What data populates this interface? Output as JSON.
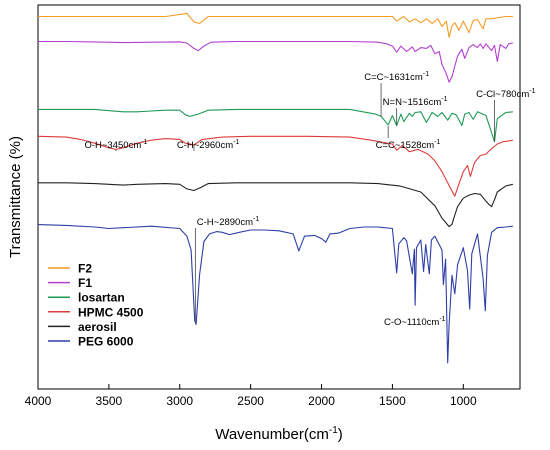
{
  "chart_data": {
    "type": "line",
    "title": "",
    "xlabel": "Wavenumber(cm",
    "xlabel_sup": "-1",
    "xlabel_close": ")",
    "ylabel": "Transmittance (%)",
    "xlim": [
      4000,
      600
    ],
    "x_reversed": true,
    "xticks": [
      4000,
      3500,
      3000,
      2500,
      2000,
      1500,
      1000
    ],
    "grid": false,
    "legend_position": "bottom-left",
    "series": [
      {
        "name": "F2",
        "color": "#F39C26",
        "baseline": 0.03,
        "points": [
          [
            4000,
            0
          ],
          [
            3500,
            0
          ],
          [
            3100,
            0
          ],
          [
            2950,
            -0.4
          ],
          [
            2900,
            0.7
          ],
          [
            2860,
            0.9
          ],
          [
            2800,
            0
          ],
          [
            2400,
            0
          ],
          [
            2000,
            0
          ],
          [
            1700,
            0
          ],
          [
            1500,
            0
          ],
          [
            1470,
            0.6
          ],
          [
            1420,
            0
          ],
          [
            1380,
            0.7
          ],
          [
            1340,
            0.3
          ],
          [
            1300,
            0.8
          ],
          [
            1260,
            0.3
          ],
          [
            1220,
            0.9
          ],
          [
            1180,
            0.3
          ],
          [
            1150,
            1.3
          ],
          [
            1120,
            0.6
          ],
          [
            1100,
            2.7
          ],
          [
            1080,
            1.2
          ],
          [
            1060,
            0.8
          ],
          [
            1030,
            1.8
          ],
          [
            1000,
            0.6
          ],
          [
            960,
            2.1
          ],
          [
            930,
            0.5
          ],
          [
            900,
            0.4
          ],
          [
            860,
            1.6
          ],
          [
            840,
            0.3
          ],
          [
            800,
            0.3
          ],
          [
            700,
            0
          ],
          [
            650,
            0
          ]
        ]
      },
      {
        "name": "F1",
        "color": "#B43FCF",
        "baseline": 0.095,
        "points": [
          [
            4000,
            0
          ],
          [
            3800,
            0
          ],
          [
            3600,
            0.05
          ],
          [
            3400,
            0.15
          ],
          [
            3200,
            0.1
          ],
          [
            3000,
            0.05
          ],
          [
            2950,
            0.2
          ],
          [
            2900,
            0.9
          ],
          [
            2870,
            1.2
          ],
          [
            2830,
            0.6
          ],
          [
            2780,
            0.1
          ],
          [
            2600,
            0
          ],
          [
            2200,
            0
          ],
          [
            1800,
            0
          ],
          [
            1600,
            0.1
          ],
          [
            1540,
            0.3
          ],
          [
            1500,
            0.6
          ],
          [
            1470,
            1.4
          ],
          [
            1440,
            0.6
          ],
          [
            1400,
            1.3
          ],
          [
            1360,
            0.7
          ],
          [
            1340,
            1.3
          ],
          [
            1300,
            0.8
          ],
          [
            1260,
            0.9
          ],
          [
            1230,
            0.5
          ],
          [
            1200,
            1.6
          ],
          [
            1170,
            1.3
          ],
          [
            1150,
            3.0
          ],
          [
            1120,
            4.2
          ],
          [
            1100,
            5.3
          ],
          [
            1080,
            4.6
          ],
          [
            1060,
            3.2
          ],
          [
            1040,
            1.9
          ],
          [
            1010,
            1.0
          ],
          [
            990,
            2.2
          ],
          [
            960,
            0.8
          ],
          [
            930,
            0.4
          ],
          [
            900,
            0.8
          ],
          [
            880,
            0.3
          ],
          [
            860,
            0.9
          ],
          [
            840,
            0.3
          ],
          [
            800,
            1.2
          ],
          [
            780,
            0.5
          ],
          [
            760,
            2.6
          ],
          [
            740,
            0.4
          ],
          [
            700,
            0.9
          ],
          [
            680,
            0.3
          ],
          [
            650,
            0.2
          ]
        ]
      },
      {
        "name": "losartan",
        "color": "#1E9A55",
        "baseline": 0.272,
        "points": [
          [
            4000,
            0
          ],
          [
            3600,
            0
          ],
          [
            3400,
            0.3
          ],
          [
            3300,
            0.3
          ],
          [
            3200,
            0.2
          ],
          [
            3100,
            0.1
          ],
          [
            3000,
            0.1
          ],
          [
            2960,
            0.7
          ],
          [
            2930,
            0.9
          ],
          [
            2870,
            0.6
          ],
          [
            2800,
            0.1
          ],
          [
            2600,
            0
          ],
          [
            2000,
            0
          ],
          [
            1800,
            0
          ],
          [
            1620,
            0.6
          ],
          [
            1580,
            0.9
          ],
          [
            1530,
            2.0
          ],
          [
            1500,
            0.8
          ],
          [
            1470,
            2.1
          ],
          [
            1440,
            0.6
          ],
          [
            1420,
            1.6
          ],
          [
            1380,
            0.5
          ],
          [
            1360,
            0.9
          ],
          [
            1340,
            0.4
          ],
          [
            1300,
            0.3
          ],
          [
            1260,
            1.7
          ],
          [
            1220,
            0.4
          ],
          [
            1180,
            0.9
          ],
          [
            1150,
            0.4
          ],
          [
            1110,
            1.4
          ],
          [
            1080,
            0.5
          ],
          [
            1050,
            0.7
          ],
          [
            1010,
            2.1
          ],
          [
            990,
            0.6
          ],
          [
            960,
            0.4
          ],
          [
            930,
            1.3
          ],
          [
            900,
            0.3
          ],
          [
            840,
            0.8
          ],
          [
            780,
            4.2
          ],
          [
            760,
            1.2
          ],
          [
            740,
            0.9
          ],
          [
            700,
            0.4
          ],
          [
            650,
            0.3
          ]
        ]
      },
      {
        "name": "HPMC 4500",
        "color": "#DD3B3B",
        "baseline": 0.342,
        "points": [
          [
            4000,
            0
          ],
          [
            3800,
            0.1
          ],
          [
            3700,
            0.4
          ],
          [
            3600,
            0.9
          ],
          [
            3500,
            1.5
          ],
          [
            3450,
            1.7
          ],
          [
            3400,
            1.5
          ],
          [
            3300,
            0.9
          ],
          [
            3200,
            0.5
          ],
          [
            3100,
            0.3
          ],
          [
            3000,
            0.4
          ],
          [
            2960,
            0.9
          ],
          [
            2900,
            1.1
          ],
          [
            2840,
            0.4
          ],
          [
            2700,
            0.1
          ],
          [
            2500,
            0
          ],
          [
            2100,
            0
          ],
          [
            1800,
            0.1
          ],
          [
            1650,
            0.5
          ],
          [
            1500,
            1.0
          ],
          [
            1470,
            1.8
          ],
          [
            1430,
            1.2
          ],
          [
            1380,
            2.0
          ],
          [
            1320,
            1.7
          ],
          [
            1250,
            2.3
          ],
          [
            1200,
            3.2
          ],
          [
            1150,
            4.6
          ],
          [
            1100,
            6.4
          ],
          [
            1060,
            7.8
          ],
          [
            1040,
            6.7
          ],
          [
            1000,
            4.6
          ],
          [
            970,
            3.8
          ],
          [
            950,
            5.2
          ],
          [
            920,
            3.4
          ],
          [
            880,
            2.5
          ],
          [
            840,
            2.3
          ],
          [
            800,
            1.6
          ],
          [
            760,
            1.0
          ],
          [
            720,
            0.7
          ],
          [
            680,
            0.6
          ],
          [
            650,
            0.5
          ]
        ]
      },
      {
        "name": "aerosil",
        "color": "#222222",
        "baseline": 0.463,
        "points": [
          [
            4000,
            0
          ],
          [
            3800,
            0
          ],
          [
            3600,
            0.1
          ],
          [
            3400,
            0.3
          ],
          [
            3300,
            0.2
          ],
          [
            3100,
            0.1
          ],
          [
            3000,
            0.2
          ],
          [
            2950,
            0.8
          ],
          [
            2900,
            1.0
          ],
          [
            2850,
            0.6
          ],
          [
            2800,
            0.1
          ],
          [
            2600,
            0
          ],
          [
            2200,
            0
          ],
          [
            1800,
            0
          ],
          [
            1600,
            0.1
          ],
          [
            1450,
            0.4
          ],
          [
            1300,
            1.2
          ],
          [
            1200,
            3.0
          ],
          [
            1150,
            4.6
          ],
          [
            1100,
            5.7
          ],
          [
            1080,
            5.4
          ],
          [
            1060,
            4.2
          ],
          [
            1040,
            3.1
          ],
          [
            1000,
            2.0
          ],
          [
            960,
            1.6
          ],
          [
            920,
            1.4
          ],
          [
            880,
            1.5
          ],
          [
            840,
            2.4
          ],
          [
            820,
            2.8
          ],
          [
            800,
            3.1
          ],
          [
            780,
            2.2
          ],
          [
            760,
            1.2
          ],
          [
            700,
            0.4
          ],
          [
            650,
            0.2
          ]
        ]
      },
      {
        "name": "PEG 6000",
        "color": "#2E3EA8",
        "baseline": 0.572,
        "points": [
          [
            4000,
            0
          ],
          [
            3800,
            0.1
          ],
          [
            3600,
            0.3
          ],
          [
            3500,
            0.5
          ],
          [
            3400,
            0.4
          ],
          [
            3200,
            0.2
          ],
          [
            3000,
            0.5
          ],
          [
            2950,
            1.5
          ],
          [
            2920,
            3.3
          ],
          [
            2895,
            12.5
          ],
          [
            2885,
            13.0
          ],
          [
            2860,
            6.5
          ],
          [
            2830,
            2.2
          ],
          [
            2790,
            1.2
          ],
          [
            2740,
            0.9
          ],
          [
            2700,
            1.0
          ],
          [
            2650,
            1.3
          ],
          [
            2580,
            1.0
          ],
          [
            2500,
            0.7
          ],
          [
            2400,
            0.7
          ],
          [
            2300,
            0.8
          ],
          [
            2200,
            1.2
          ],
          [
            2160,
            3.4
          ],
          [
            2120,
            1.5
          ],
          [
            2050,
            1.4
          ],
          [
            2000,
            1.8
          ],
          [
            1970,
            2.3
          ],
          [
            1940,
            1.2
          ],
          [
            1880,
            1.1
          ],
          [
            1800,
            0.5
          ],
          [
            1700,
            0.3
          ],
          [
            1600,
            0.3
          ],
          [
            1500,
            0.5
          ],
          [
            1470,
            6.3
          ],
          [
            1455,
            2.5
          ],
          [
            1420,
            1.7
          ],
          [
            1400,
            2.1
          ],
          [
            1360,
            6.4
          ],
          [
            1345,
            3.2
          ],
          [
            1340,
            10.5
          ],
          [
            1330,
            3.0
          ],
          [
            1300,
            2.0
          ],
          [
            1280,
            6.1
          ],
          [
            1265,
            2.6
          ],
          [
            1240,
            6.4
          ],
          [
            1225,
            2.0
          ],
          [
            1200,
            1.5
          ],
          [
            1150,
            3.3
          ],
          [
            1140,
            7.8
          ],
          [
            1125,
            4.5
          ],
          [
            1110,
            18.0
          ],
          [
            1100,
            13.0
          ],
          [
            1080,
            6.6
          ],
          [
            1060,
            9.0
          ],
          [
            1040,
            5.2
          ],
          [
            1000,
            3.0
          ],
          [
            970,
            6.0
          ],
          [
            955,
            11.0
          ],
          [
            940,
            3.8
          ],
          [
            900,
            1.2
          ],
          [
            860,
            7.0
          ],
          [
            845,
            11.2
          ],
          [
            830,
            4.0
          ],
          [
            800,
            1.0
          ],
          [
            760,
            0.4
          ],
          [
            700,
            0.3
          ],
          [
            650,
            0.2
          ]
        ]
      }
    ],
    "annotations": [
      {
        "series": "HPMC 4500",
        "x": 3450,
        "text": "O-H~3450cm",
        "sup": "-1",
        "label_x": 3450,
        "anchor": "middle"
      },
      {
        "series": "HPMC 4500",
        "x": 2900,
        "text": "C-H~2960cm",
        "sup": "-1",
        "label_x": 2800,
        "anchor": "middle"
      },
      {
        "series": "losartan",
        "x": 1580,
        "text": "C=C~1631cm",
        "sup": "-1",
        "label_x": 1470,
        "anchor": "middle"
      },
      {
        "series": "losartan",
        "x": 1470,
        "text": "N=N~1516cm",
        "sup": "-1",
        "label_x": 1340,
        "anchor": "middle"
      },
      {
        "series": "losartan",
        "x": 1530,
        "text": "C=C~1528cm",
        "sup": "-1",
        "label_x": 1390,
        "anchor": "middle"
      },
      {
        "series": "losartan",
        "x": 780,
        "text": "C-Cl~780cm",
        "sup": "-1",
        "label_x": 700,
        "anchor": "middle"
      },
      {
        "series": "PEG 6000",
        "x": 2890,
        "text": "C-H~2890cm",
        "sup": "-1",
        "label_x": 2880,
        "anchor": "start"
      },
      {
        "series": "PEG 6000",
        "x": 1110,
        "text": "C-O~1110cm",
        "sup": "-1",
        "label_x": 1125,
        "anchor": "end"
      }
    ]
  }
}
